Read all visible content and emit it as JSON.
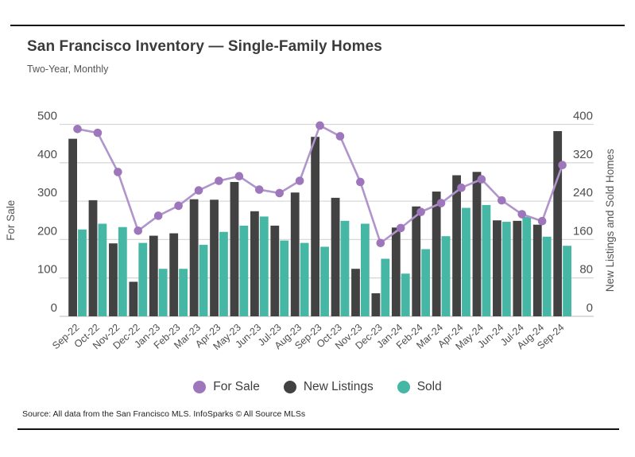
{
  "page": {
    "source_note": "Source:  All data from the San Francisco MLS. InfoSparks © All Source MLSs"
  },
  "chart_data": {
    "type": "bar+line combo",
    "title": "San Francisco Inventory — Single-Family Homes",
    "subtitle": "Two-Year, Monthly",
    "categories": [
      "Sep-22",
      "Oct-22",
      "Nov-22",
      "Dec-22",
      "Jan-23",
      "Feb-23",
      "Mar-23",
      "Apr-23",
      "May-23",
      "Jun-23",
      "Jul-23",
      "Aug-23",
      "Sep-23",
      "Oct-23",
      "Nov-23",
      "Dec-23",
      "Jan-24",
      "Feb-24",
      "Mar-24",
      "Apr-24",
      "May-24",
      "Jun-24",
      "Jul-24",
      "Aug-24",
      "Sep-24"
    ],
    "series": [
      {
        "name": "For Sale",
        "type": "line",
        "axis": "left",
        "color": "#9d76bb",
        "line_color": "#b094cc",
        "values": [
          488,
          478,
          376,
          223,
          262,
          288,
          328,
          353,
          365,
          330,
          321,
          353,
          497,
          469,
          350,
          191,
          230,
          272,
          295,
          335,
          357,
          302,
          266,
          248,
          394
        ]
      },
      {
        "name": "New Listings",
        "type": "bar",
        "axis": "right",
        "color": "#424242",
        "values": [
          370,
          242,
          152,
          72,
          168,
          173,
          244,
          243,
          280,
          219,
          189,
          258,
          374,
          247,
          99,
          48,
          185,
          229,
          260,
          294,
          301,
          200,
          199,
          191,
          386
        ]
      },
      {
        "name": "Sold",
        "type": "bar",
        "axis": "right",
        "color": "#47b7a5",
        "values": [
          181,
          193,
          186,
          153,
          99,
          99,
          149,
          176,
          189,
          208,
          158,
          153,
          145,
          199,
          193,
          120,
          89,
          140,
          167,
          226,
          232,
          197,
          207,
          166,
          147
        ]
      }
    ],
    "left_axis": {
      "label": "For Sale",
      "ticks": [
        0,
        100,
        200,
        300,
        400,
        500
      ],
      "range": [
        0,
        500
      ]
    },
    "right_axis": {
      "label": "New Listings and Sold Homes",
      "ticks": [
        0,
        80,
        160,
        240,
        320,
        400
      ],
      "range": [
        0,
        400
      ]
    },
    "grid": "horizontal",
    "legend_position": "bottom",
    "colors": {
      "gridline": "#d8d8d8",
      "baseline": "#c6c6c6",
      "tick_text": "#4d4d4d",
      "axis_title": "#555555"
    }
  }
}
